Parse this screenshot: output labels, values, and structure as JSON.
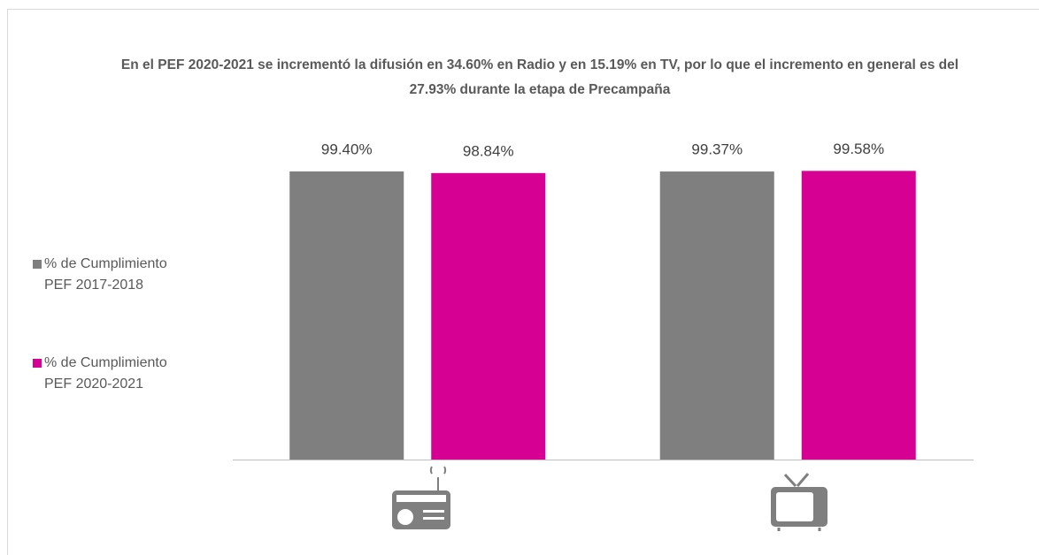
{
  "chart_data": {
    "type": "bar",
    "title": "En el PEF 2020-2021 se incrementó la difusión en 34.60% en Radio y en 15.19% en TV, por lo que el incremento en general es del 27.93% durante la etapa de Precampaña",
    "categories": [
      null,
      null
    ],
    "series": [
      {
        "name": "% de Cumplimiento PEF 2017-2018",
        "color": "#7f7f7f",
        "values": [
          99.4,
          99.37
        ],
        "value_labels": [
          "99.40%",
          "99.37%"
        ]
      },
      {
        "name": "% de Cumplimiento PEF 2020-2021",
        "color": "#d60093",
        "values": [
          98.84,
          99.58
        ],
        "value_labels": [
          "98.84%",
          "99.58%"
        ]
      }
    ],
    "ylim": [
      0,
      100
    ]
  }
}
